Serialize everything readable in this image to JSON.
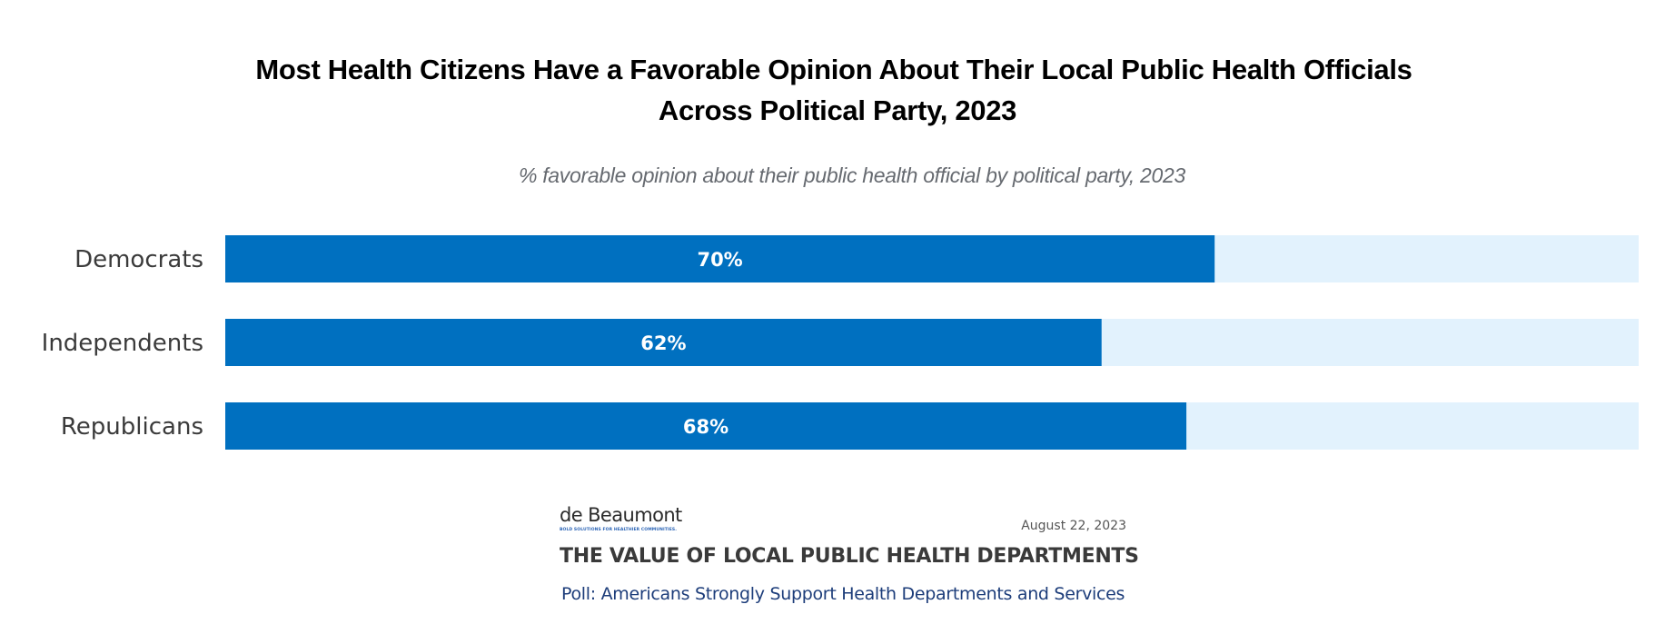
{
  "colors": {
    "bar_fill": "#0070c0",
    "bar_track": "#e2f2fd",
    "value_text": "#ffffff",
    "category_text": "#3b3b3b",
    "link_text": "#1d3d7a"
  },
  "chart_data": {
    "type": "bar",
    "orientation": "horizontal",
    "title": "Most Health Citizens Have a Favorable Opinion About Their Local Public Health Officials Across Political Party, 2023",
    "title_lines": [
      "Most Health Citizens Have a Favorable Opinion About Their Local Public Health Officials",
      "Across Political Party, 2023"
    ],
    "subtitle": "% favorable opinion about their public health official by political party, 2023",
    "categories": [
      "Democrats",
      "Independents",
      "Republicans"
    ],
    "values": [
      70,
      62,
      68
    ],
    "value_labels": [
      "70%",
      "62%",
      "68%"
    ],
    "unit": "%",
    "xlim": [
      0,
      100
    ],
    "xlabel": "",
    "ylabel": "",
    "grid": false,
    "legend": "none"
  },
  "footer": {
    "logo_name": "de Beaumont",
    "logo_tagline": "BOLD SOLUTIONS FOR HEALTHIER COMMUNITIES.",
    "date": "August 22, 2023",
    "report_title": "THE VALUE OF LOCAL PUBLIC HEALTH DEPARTMENTS",
    "report_link": "Poll: Americans Strongly Support Health Departments and Services"
  }
}
